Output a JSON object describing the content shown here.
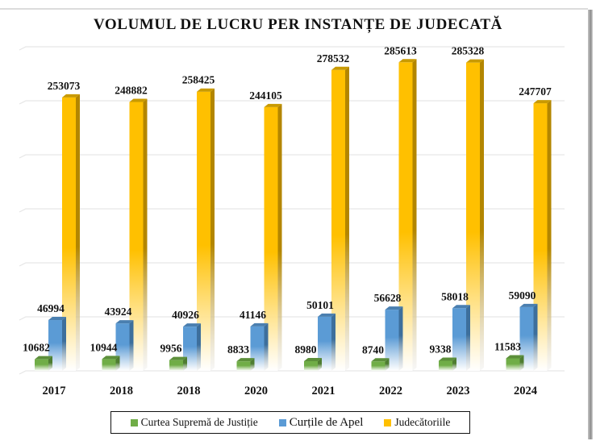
{
  "chart_data": {
    "type": "bar",
    "title": "VOLUMUL DE LUCRU PER INSTANȚE DE JUDECATĂ",
    "xlabel": "",
    "ylabel": "",
    "ylim": [
      0,
      300000
    ],
    "ytick_step": 50000,
    "show_ytick_labels": false,
    "grid": true,
    "style": "3d-column",
    "legend_position": "bottom",
    "categories": [
      "2017",
      "2018",
      "2018",
      "2020",
      "2021",
      "2022",
      "2023",
      "2024"
    ],
    "series": [
      {
        "name": "Curtea Supremă de Justiție",
        "color": "#70ad47",
        "side_color": "#4e7d31",
        "top_color": "#5c8f3a",
        "values": [
          10682,
          10944,
          9956,
          8833,
          8980,
          8740,
          9338,
          11583
        ]
      },
      {
        "name": "Curțile de Apel",
        "color": "#5b9bd5",
        "side_color": "#3d6f9c",
        "top_color": "#4a7fb0",
        "values": [
          46994,
          43924,
          40926,
          41146,
          50101,
          56628,
          58018,
          59090
        ]
      },
      {
        "name": "Judecătoriile",
        "color": "#ffc000",
        "side_color": "#b38600",
        "top_color": "#c99a00",
        "values": [
          253073,
          248882,
          258425,
          244105,
          278532,
          285613,
          285328,
          247707
        ]
      }
    ]
  }
}
